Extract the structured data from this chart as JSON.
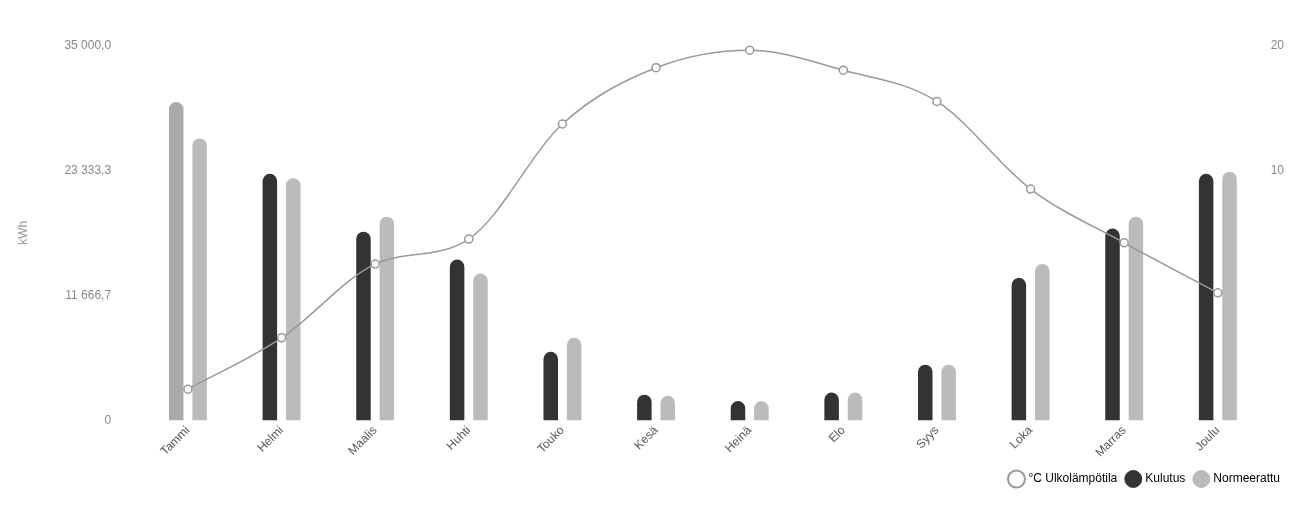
{
  "chart_data": {
    "type": "bar",
    "ylabel": "kWh",
    "categories": [
      "Tammi",
      "Helmi",
      "Maalis",
      "Huhti",
      "Touko",
      "Kesä",
      "Heinä",
      "Elo",
      "Syys",
      "Loka",
      "Marras",
      "Joulu"
    ],
    "series": [
      {
        "name": "°C Ulkolämpötila",
        "type": "line",
        "axis": "y2",
        "color": "#999999",
        "values": [
          -7.5,
          -3.4,
          2.5,
          4.5,
          13.7,
          18.2,
          19.6,
          18.0,
          15.5,
          8.5,
          4.2,
          0.2
        ]
      },
      {
        "name": "Kulutus",
        "color": "#333333",
        "colors": [
          "#aaaaaa",
          "#333333",
          "#333333",
          "#333333",
          "#333333",
          "#333333",
          "#333333",
          "#333333",
          "#333333",
          "#333333",
          "#333333",
          "#333333"
        ],
        "values": [
          29700,
          23000,
          17600,
          15000,
          6400,
          2400,
          1800,
          2600,
          5200,
          13300,
          17900,
          23000
        ]
      },
      {
        "name": "Normeerattu",
        "color": "#bbbbbb",
        "values": [
          26300,
          22600,
          19000,
          13700,
          7700,
          2300,
          1800,
          2600,
          5200,
          14600,
          19000,
          23200
        ]
      }
    ],
    "ylim": [
      0,
      35000
    ],
    "yticks": [
      0,
      {
        "value": 11666.7,
        "label": "11 666,7"
      },
      {
        "value": 23333.3,
        "label": "23 333,3"
      },
      {
        "value": 35000,
        "label": "35 000,0"
      }
    ],
    "y2lim": [
      -10,
      20
    ],
    "y2ticks": [
      10,
      20
    ],
    "marker": "circle",
    "grid": false,
    "legend": "bottom right"
  }
}
